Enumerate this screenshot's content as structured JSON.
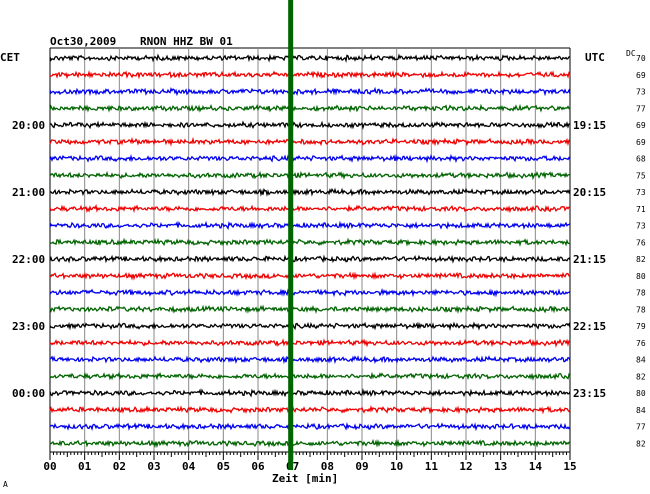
{
  "header": {
    "date": "Oct30,2009",
    "station": "RNON HHZ BW 01",
    "left_zone": "CET",
    "right_zone": "UTC",
    "dc_label": "DC"
  },
  "chart_data": {
    "type": "line",
    "xlabel": "Zeit [min]",
    "xlim": [
      0,
      15
    ],
    "x_ticks": [
      "00",
      "01",
      "02",
      "03",
      "04",
      "05",
      "06",
      "07",
      "08",
      "09",
      "10",
      "11",
      "12",
      "13",
      "14",
      "15"
    ],
    "trace_colors": [
      "#000000",
      "#ee0000",
      "#0000ee",
      "#006400"
    ],
    "trace_count": 24,
    "left_hour_labels": [
      {
        "row": 4,
        "text": "20:00"
      },
      {
        "row": 8,
        "text": "21:00"
      },
      {
        "row": 12,
        "text": "22:00"
      },
      {
        "row": 16,
        "text": "23:00"
      },
      {
        "row": 20,
        "text": "00:00"
      }
    ],
    "right_hour_labels": [
      {
        "row": 4,
        "text": "19:15"
      },
      {
        "row": 8,
        "text": "20:15"
      },
      {
        "row": 12,
        "text": "21:15"
      },
      {
        "row": 16,
        "text": "22:15"
      },
      {
        "row": 20,
        "text": "23:15"
      }
    ],
    "dc_offsets": [
      "70",
      "69",
      "73",
      "77",
      "69",
      "69",
      "68",
      "75",
      "73",
      "71",
      "73",
      "76",
      "82",
      "80",
      "78",
      "78",
      "79",
      "76",
      "84",
      "82",
      "80",
      "84",
      "77",
      "82"
    ],
    "event_marker": {
      "minute": 7.0,
      "color": "#006400"
    }
  },
  "footer": {
    "corner_mark": "A"
  }
}
